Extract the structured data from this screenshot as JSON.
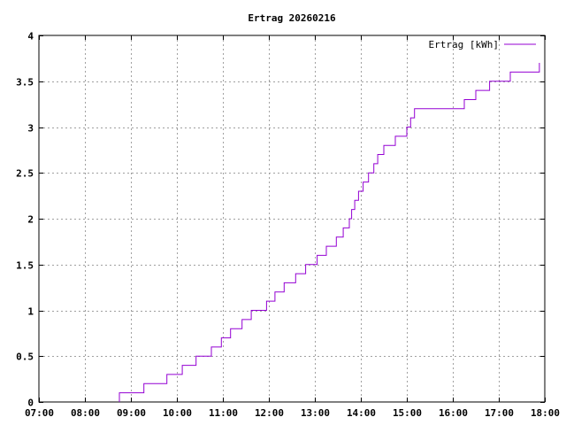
{
  "chart_data": {
    "type": "line",
    "title": "Ertrag 20260216",
    "legend": {
      "placement": "top-right",
      "entries": [
        "Ertrag [kWh]"
      ]
    },
    "grid": true,
    "x_axis": {
      "range": [
        "07:00",
        "18:00"
      ],
      "ticks": [
        "07:00",
        "08:00",
        "09:00",
        "10:00",
        "11:00",
        "12:00",
        "13:00",
        "14:00",
        "15:00",
        "16:00",
        "17:00",
        "18:00"
      ]
    },
    "y_axis": {
      "range": [
        0,
        4
      ],
      "ticks": [
        "0",
        "0.5",
        "1",
        "1.5",
        "2",
        "2.5",
        "3",
        "3.5",
        "4"
      ]
    },
    "series": [
      {
        "name": "Ertrag [kWh]",
        "color": "#9400d3",
        "step": true,
        "x": [
          "08:45",
          "09:17",
          "09:47",
          "10:07",
          "10:25",
          "10:45",
          "10:58",
          "11:10",
          "11:25",
          "11:37",
          "11:57",
          "12:08",
          "12:20",
          "12:35",
          "12:48",
          "13:03",
          "13:15",
          "13:28",
          "13:37",
          "13:45",
          "13:48",
          "13:52",
          "13:57",
          "14:03",
          "14:10",
          "14:17",
          "14:22",
          "14:30",
          "14:45",
          "15:00",
          "15:05",
          "15:10",
          "15:15",
          "16:15",
          "16:30",
          "16:48",
          "17:15",
          "17:50",
          "17:53"
        ],
        "y": [
          0.1,
          0.2,
          0.3,
          0.4,
          0.5,
          0.6,
          0.7,
          0.8,
          0.9,
          1.0,
          1.1,
          1.2,
          1.3,
          1.4,
          1.5,
          1.6,
          1.7,
          1.8,
          1.9,
          2.0,
          2.1,
          2.2,
          2.3,
          2.4,
          2.5,
          2.6,
          2.7,
          2.8,
          2.9,
          3.0,
          3.1,
          3.2,
          3.2,
          3.3,
          3.4,
          3.5,
          3.6,
          3.6,
          3.7
        ]
      }
    ]
  }
}
